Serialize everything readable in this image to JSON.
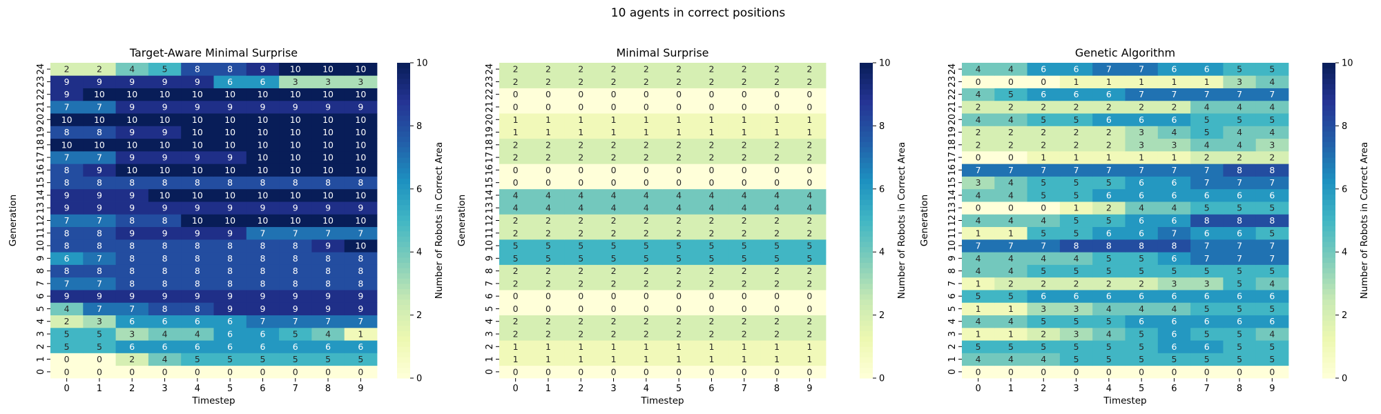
{
  "figure": {
    "suptitle": "10 agents in correct positions"
  },
  "chart_data": [
    {
      "type": "heatmap",
      "title": "Target-Aware Minimal Surprise",
      "xlabel": "Timestep",
      "ylabel": "Generation",
      "colorbar_label": "Number of Robots in Correct Area",
      "colormap": "YlGnBu",
      "vmin": 0,
      "vmax": 10,
      "colorbar_ticks": [
        0,
        2,
        4,
        6,
        8,
        10
      ],
      "x_ticks": [
        "0",
        "1",
        "2",
        "3",
        "4",
        "5",
        "6",
        "7",
        "8",
        "9"
      ],
      "y_ticks": [
        "0",
        "1",
        "2",
        "3",
        "4",
        "5",
        "6",
        "7",
        "8",
        "9",
        "10",
        "11",
        "12",
        "13",
        "14",
        "15",
        "16",
        "17",
        "18",
        "19",
        "20",
        "21",
        "22",
        "23",
        "24"
      ],
      "values": [
        [
          0,
          0,
          0,
          0,
          0,
          0,
          0,
          0,
          0,
          0
        ],
        [
          0,
          0,
          2,
          4,
          5,
          5,
          5,
          5,
          5,
          5
        ],
        [
          5,
          5,
          6,
          6,
          6,
          6,
          6,
          6,
          6,
          6
        ],
        [
          5,
          5,
          3,
          4,
          4,
          6,
          6,
          5,
          4,
          1
        ],
        [
          2,
          3,
          6,
          6,
          6,
          6,
          7,
          7,
          7,
          7
        ],
        [
          4,
          7,
          7,
          8,
          8,
          9,
          9,
          9,
          9,
          9
        ],
        [
          9,
          9,
          9,
          9,
          9,
          9,
          9,
          9,
          9,
          9
        ],
        [
          7,
          7,
          8,
          8,
          8,
          8,
          8,
          8,
          8,
          8
        ],
        [
          8,
          8,
          8,
          8,
          8,
          8,
          8,
          8,
          8,
          8
        ],
        [
          6,
          7,
          8,
          8,
          8,
          8,
          8,
          8,
          8,
          8
        ],
        [
          8,
          8,
          8,
          8,
          8,
          8,
          8,
          8,
          9,
          10
        ],
        [
          8,
          8,
          9,
          9,
          9,
          9,
          7,
          7,
          7,
          7
        ],
        [
          7,
          7,
          8,
          8,
          10,
          10,
          10,
          10,
          10,
          10
        ],
        [
          9,
          9,
          9,
          9,
          9,
          9,
          9,
          9,
          9,
          9
        ],
        [
          9,
          9,
          9,
          10,
          10,
          10,
          10,
          10,
          10,
          10
        ],
        [
          8,
          8,
          8,
          8,
          8,
          8,
          8,
          8,
          8,
          8
        ],
        [
          8,
          9,
          10,
          10,
          10,
          10,
          10,
          10,
          10,
          10
        ],
        [
          7,
          7,
          9,
          9,
          9,
          9,
          10,
          10,
          10,
          10
        ],
        [
          10,
          10,
          10,
          10,
          10,
          10,
          10,
          10,
          10,
          10
        ],
        [
          8,
          8,
          9,
          9,
          10,
          10,
          10,
          10,
          10,
          10
        ],
        [
          10,
          10,
          10,
          10,
          10,
          10,
          10,
          10,
          10,
          10
        ],
        [
          7,
          7,
          9,
          9,
          9,
          9,
          9,
          9,
          9,
          9
        ],
        [
          9,
          10,
          10,
          10,
          10,
          10,
          10,
          10,
          10,
          10
        ],
        [
          9,
          9,
          9,
          9,
          9,
          6,
          6,
          3,
          3,
          3
        ],
        [
          2,
          2,
          4,
          5,
          8,
          8,
          9,
          10,
          10,
          10
        ]
      ]
    },
    {
      "type": "heatmap",
      "title": "Minimal Surprise",
      "xlabel": "Timestep",
      "ylabel": "Generation",
      "colorbar_label": "Number of Robots in Correct Area",
      "colormap": "YlGnBu",
      "vmin": 0,
      "vmax": 10,
      "colorbar_ticks": [
        0,
        2,
        4,
        6,
        8,
        10
      ],
      "x_ticks": [
        "0",
        "1",
        "2",
        "3",
        "4",
        "5",
        "6",
        "7",
        "8",
        "9"
      ],
      "y_ticks": [
        "0",
        "1",
        "2",
        "3",
        "4",
        "5",
        "6",
        "7",
        "8",
        "9",
        "10",
        "11",
        "12",
        "13",
        "14",
        "15",
        "16",
        "17",
        "18",
        "19",
        "20",
        "21",
        "22",
        "23",
        "24"
      ],
      "values": [
        [
          0,
          0,
          0,
          0,
          0,
          0,
          0,
          0,
          0,
          0
        ],
        [
          1,
          1,
          1,
          1,
          1,
          1,
          1,
          1,
          1,
          1
        ],
        [
          1,
          1,
          1,
          1,
          1,
          1,
          1,
          1,
          1,
          1
        ],
        [
          2,
          2,
          2,
          2,
          2,
          2,
          2,
          2,
          2,
          2
        ],
        [
          2,
          2,
          2,
          2,
          2,
          2,
          2,
          2,
          2,
          2
        ],
        [
          0,
          0,
          0,
          0,
          0,
          0,
          0,
          0,
          0,
          0
        ],
        [
          0,
          0,
          0,
          0,
          0,
          0,
          0,
          0,
          0,
          0
        ],
        [
          2,
          2,
          2,
          2,
          2,
          2,
          2,
          2,
          2,
          2
        ],
        [
          2,
          2,
          2,
          2,
          2,
          2,
          2,
          2,
          2,
          2
        ],
        [
          5,
          5,
          5,
          5,
          5,
          5,
          5,
          5,
          5,
          5
        ],
        [
          5,
          5,
          5,
          5,
          5,
          5,
          5,
          5,
          5,
          5
        ],
        [
          2,
          2,
          2,
          2,
          2,
          2,
          2,
          2,
          2,
          2
        ],
        [
          2,
          2,
          2,
          2,
          2,
          2,
          2,
          2,
          2,
          2
        ],
        [
          4,
          4,
          4,
          4,
          4,
          4,
          4,
          4,
          4,
          4
        ],
        [
          4,
          4,
          4,
          4,
          4,
          4,
          4,
          4,
          4,
          4
        ],
        [
          0,
          0,
          0,
          0,
          0,
          0,
          0,
          0,
          0,
          0
        ],
        [
          0,
          0,
          0,
          0,
          0,
          0,
          0,
          0,
          0,
          0
        ],
        [
          2,
          2,
          2,
          2,
          2,
          2,
          2,
          2,
          2,
          2
        ],
        [
          2,
          2,
          2,
          2,
          2,
          2,
          2,
          2,
          2,
          2
        ],
        [
          1,
          1,
          1,
          1,
          1,
          1,
          1,
          1,
          1,
          1
        ],
        [
          1,
          1,
          1,
          1,
          1,
          1,
          1,
          1,
          1,
          1
        ],
        [
          0,
          0,
          0,
          0,
          0,
          0,
          0,
          0,
          0,
          0
        ],
        [
          0,
          0,
          0,
          0,
          0,
          0,
          0,
          0,
          0,
          0
        ],
        [
          2,
          2,
          2,
          2,
          2,
          2,
          2,
          2,
          2,
          2
        ],
        [
          2,
          2,
          2,
          2,
          2,
          2,
          2,
          2,
          2,
          2
        ]
      ]
    },
    {
      "type": "heatmap",
      "title": "Genetic Algorithm",
      "xlabel": "Timestep",
      "ylabel": "Generation",
      "colorbar_label": "Number of Robots in Correct Area",
      "colormap": "YlGnBu",
      "vmin": 0,
      "vmax": 10,
      "colorbar_ticks": [
        0,
        2,
        4,
        6,
        8,
        10
      ],
      "x_ticks": [
        "0",
        "1",
        "2",
        "3",
        "4",
        "5",
        "6",
        "7",
        "8",
        "9"
      ],
      "y_ticks": [
        "0",
        "1",
        "2",
        "3",
        "4",
        "5",
        "6",
        "7",
        "8",
        "9",
        "10",
        "11",
        "12",
        "13",
        "14",
        "15",
        "16",
        "17",
        "18",
        "19",
        "20",
        "21",
        "22",
        "23",
        "24"
      ],
      "values": [
        [
          0,
          0,
          0,
          0,
          0,
          0,
          0,
          0,
          0,
          0
        ],
        [
          4,
          4,
          4,
          5,
          5,
          5,
          5,
          5,
          5,
          5
        ],
        [
          5,
          5,
          5,
          5,
          5,
          5,
          6,
          6,
          5,
          5
        ],
        [
          1,
          1,
          2,
          3,
          4,
          5,
          6,
          5,
          5,
          4
        ],
        [
          4,
          4,
          5,
          5,
          5,
          6,
          6,
          6,
          6,
          6
        ],
        [
          1,
          1,
          3,
          3,
          4,
          4,
          4,
          5,
          5,
          5
        ],
        [
          5,
          5,
          6,
          6,
          6,
          6,
          6,
          6,
          6,
          6
        ],
        [
          1,
          2,
          2,
          2,
          2,
          2,
          3,
          3,
          5,
          4
        ],
        [
          4,
          4,
          5,
          5,
          5,
          5,
          5,
          5,
          5,
          5
        ],
        [
          4,
          4,
          4,
          4,
          5,
          5,
          6,
          7,
          7,
          7
        ],
        [
          7,
          7,
          7,
          8,
          8,
          8,
          8,
          7,
          7,
          7
        ],
        [
          1,
          1,
          5,
          5,
          6,
          6,
          7,
          6,
          6,
          5
        ],
        [
          4,
          4,
          4,
          5,
          5,
          6,
          6,
          8,
          8,
          8
        ],
        [
          0,
          0,
          0,
          1,
          2,
          4,
          4,
          5,
          5,
          5
        ],
        [
          4,
          4,
          5,
          5,
          6,
          6,
          6,
          6,
          6,
          6
        ],
        [
          3,
          4,
          5,
          5,
          5,
          6,
          6,
          7,
          7,
          7
        ],
        [
          7,
          7,
          7,
          7,
          7,
          7,
          7,
          7,
          8,
          8
        ],
        [
          0,
          0,
          1,
          1,
          1,
          1,
          1,
          2,
          2,
          2
        ],
        [
          2,
          2,
          2,
          2,
          2,
          3,
          3,
          4,
          4,
          3
        ],
        [
          2,
          2,
          2,
          2,
          2,
          3,
          4,
          5,
          4,
          4
        ],
        [
          4,
          4,
          5,
          5,
          6,
          6,
          6,
          5,
          5,
          5
        ],
        [
          2,
          2,
          2,
          2,
          2,
          2,
          2,
          4,
          4,
          4
        ],
        [
          4,
          5,
          6,
          6,
          6,
          7,
          7,
          7,
          7,
          7
        ],
        [
          0,
          0,
          0,
          1,
          1,
          1,
          1,
          1,
          3,
          4
        ],
        [
          4,
          4,
          6,
          6,
          7,
          7,
          6,
          6,
          5,
          5
        ]
      ]
    }
  ]
}
